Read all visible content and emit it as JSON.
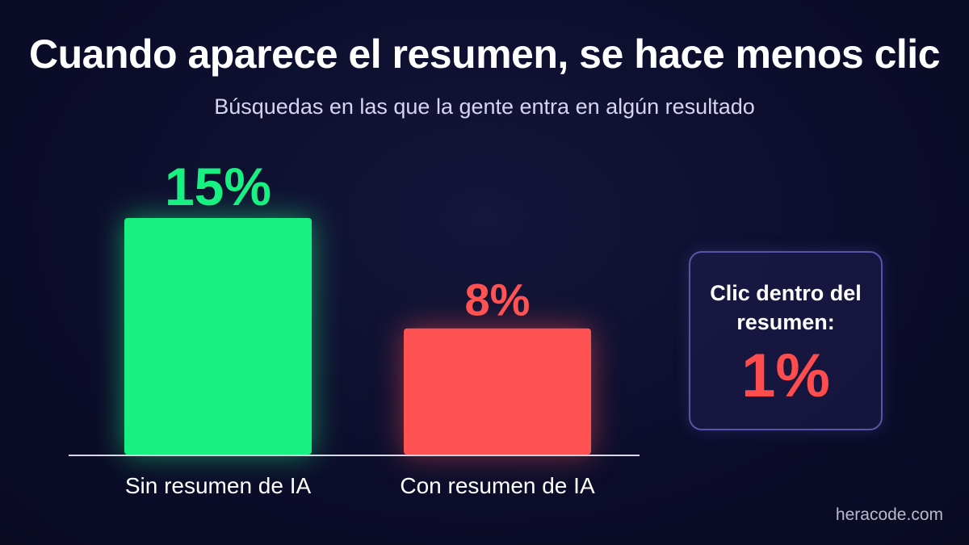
{
  "header": {
    "title": "Cuando aparece el resumen, se hace menos clic",
    "subtitle": "Búsquedas en las que la gente entra en algún resultado"
  },
  "chart_data": {
    "type": "bar",
    "title": "Cuando aparece el resumen, se hace menos clic",
    "subtitle": "Búsquedas en las que la gente entra en algún resultado",
    "categories": [
      "Sin resumen de IA",
      "Con resumen de IA"
    ],
    "values": [
      15,
      8
    ],
    "value_labels": [
      "15%",
      "8%"
    ],
    "unit": "%",
    "colors": [
      "#19f082",
      "#ff5252"
    ],
    "ylim": [
      0,
      15
    ],
    "grid": false,
    "legend": "none"
  },
  "callout": {
    "label": "Clic dentro del resumen:",
    "value": "1%",
    "value_color": "#ff4d4d"
  },
  "brand": "heracode.com",
  "colors": {
    "background": "#0c0d2b",
    "positive": "#19f082",
    "negative": "#ff5252",
    "card_border": "#5a54a8"
  }
}
